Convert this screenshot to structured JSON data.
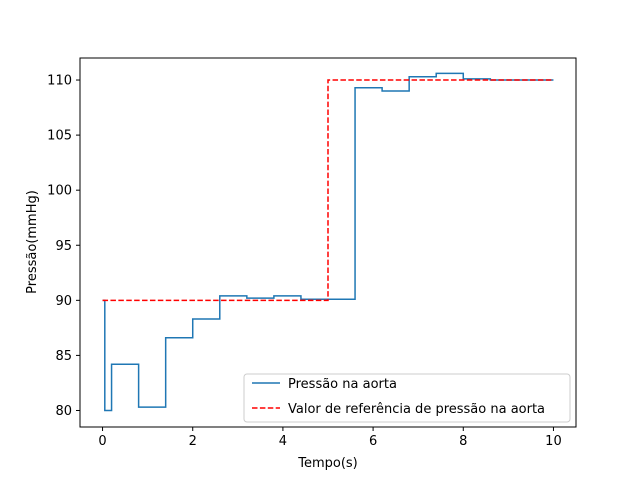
{
  "chart_data": {
    "type": "line",
    "title": "",
    "xlabel": "Tempo(s)",
    "ylabel": "Pressão(mmHg)",
    "xlim": [
      -0.5,
      10.5
    ],
    "ylim": [
      78.5,
      112
    ],
    "xticks": [
      0,
      2,
      4,
      6,
      8,
      10
    ],
    "yticks": [
      80,
      85,
      90,
      95,
      100,
      105,
      110
    ],
    "grid": false,
    "legend_position": "lower-right",
    "series": [
      {
        "name": "Pressão na aorta",
        "color": "#1f77b4",
        "style": "solid",
        "drawstyle": "steps-post",
        "x": [
          0,
          0.05,
          0.2,
          0.8,
          1.4,
          2.0,
          2.6,
          3.2,
          3.8,
          4.4,
          5.6,
          6.2,
          6.8,
          7.4,
          8.0,
          8.6,
          10.0
        ],
        "y": [
          90,
          80,
          84.2,
          80.3,
          86.6,
          88.3,
          90.4,
          90.2,
          90.4,
          90.1,
          109.3,
          109.0,
          110.3,
          110.6,
          110.1,
          110.0,
          110.0
        ]
      },
      {
        "name": "Valor de referência de pressão na aorta",
        "color": "#ff0000",
        "style": "dashed",
        "drawstyle": "steps-post",
        "x": [
          0,
          5.0,
          10.0
        ],
        "y": [
          90,
          110,
          110
        ]
      }
    ]
  }
}
